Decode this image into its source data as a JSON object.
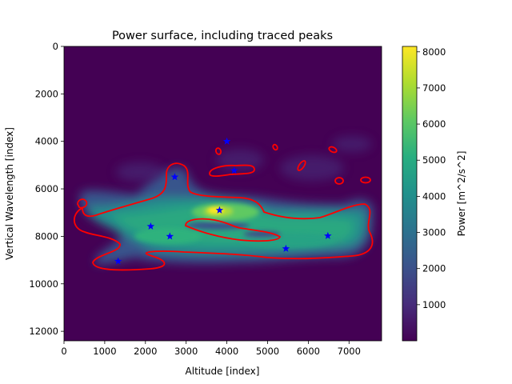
{
  "chart_data": {
    "type": "heatmap",
    "title": "Power surface, including traced peaks",
    "xlabel": "Altitude [index]",
    "ylabel": "Vertical Wavelength [index]",
    "xlim": [
      0,
      7800
    ],
    "ylim": [
      12400,
      0
    ],
    "x_ticks": [
      0,
      1000,
      2000,
      3000,
      4000,
      5000,
      6000,
      7000
    ],
    "y_ticks": [
      0,
      2000,
      4000,
      6000,
      8000,
      10000,
      12000
    ],
    "colorbar": {
      "label": "Power [m^2/s^2]",
      "range": [
        0,
        8150
      ],
      "ticks": [
        1000,
        2000,
        3000,
        4000,
        5000,
        6000,
        7000,
        8000
      ],
      "colormap": "viridis"
    },
    "peak_color": "#0000ff",
    "contour_color": "#ff0000",
    "background_color": "#440154",
    "peak_value": 8150,
    "traced_peaks": [
      {
        "x": 4000,
        "y": 4000
      },
      {
        "x": 2720,
        "y": 5500
      },
      {
        "x": 4180,
        "y": 5230
      },
      {
        "x": 3820,
        "y": 6900
      },
      {
        "x": 2130,
        "y": 7580
      },
      {
        "x": 2600,
        "y": 8000
      },
      {
        "x": 6480,
        "y": 7980
      },
      {
        "x": 5450,
        "y": 8520
      },
      {
        "x": 1330,
        "y": 9050
      }
    ]
  }
}
